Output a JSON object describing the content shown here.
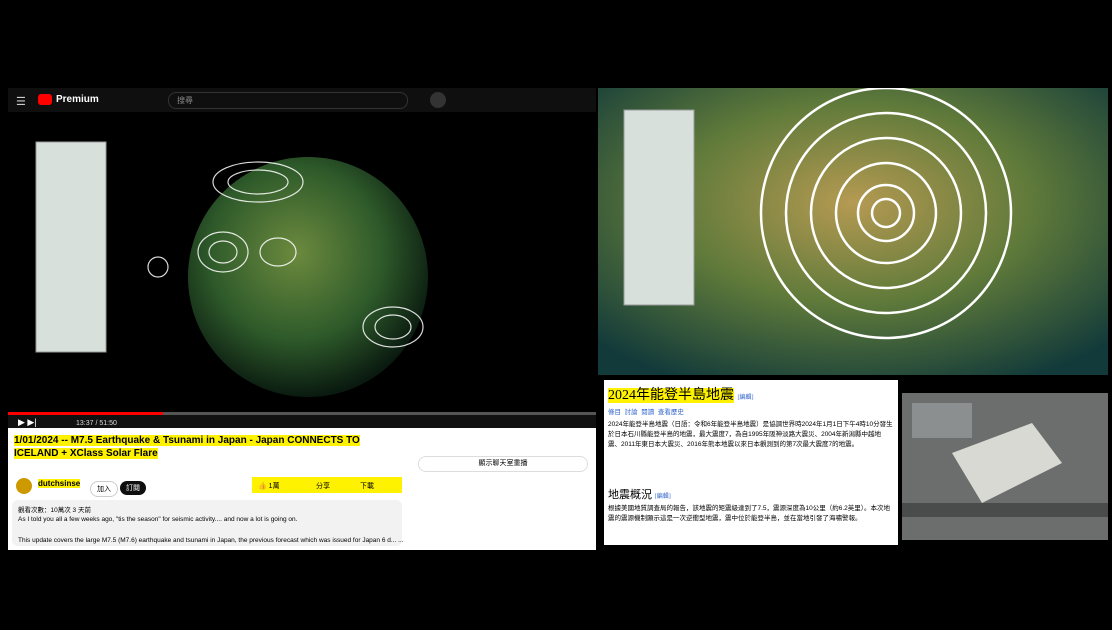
{
  "youtube": {
    "logo": "Premium",
    "search_placeholder": "搜尋",
    "time": "13:37 / 51:50",
    "title": "1/01/2024 -- M7.5 Earthquake & Tsunami in Japan - Japan CONNECTS TO ICELAND + XClass Solar Flare",
    "channel": "dutchsinse",
    "join": "加入",
    "subscribe": "訂閱",
    "likes": "1萬",
    "share": "分享",
    "download": "下載",
    "chat_replay": "顯示聊天室重播",
    "views": "觀看次數：10萬次 3 天前",
    "desc1": "As I told you all a few weeks ago, \"tis the season\" for seismic activity.... and now a lot is going on.",
    "desc2": "This update covers the large M7.5 (M7.6) earthquake and tsunami in Japan, the previous forecast which was issued for Japan 6 d... ...更多內容"
  },
  "wikipedia": {
    "title": "2024年能登半島地震",
    "edit": "[編輯]",
    "tabs": [
      "條目",
      "討論",
      "閱讀",
      "查看歷史"
    ],
    "intro": "2024年能登半島地震（日語：令和6年能登半島地震）是協調世界時2024年1月1日下午4時10分發生於日本石川縣能登半島的地震，最大震度7，為自1995年阪神淡路大震災、2004年新潟縣中越地震、2011年東日本大震災、2016年熊本地震以來日本觀測到的第7次最大震度7的地震。",
    "section": "地震概況",
    "section_edit": "[編輯]",
    "section_text": "根據美國地質調查局的報告，該地震的矩震級達到了7.5，震源深度為10公里（約6.2英里）。本次地震的震源機制顯示這是一次逆衝型地震，震中位於能登半島，並在當地引發了海嘯警報。"
  }
}
